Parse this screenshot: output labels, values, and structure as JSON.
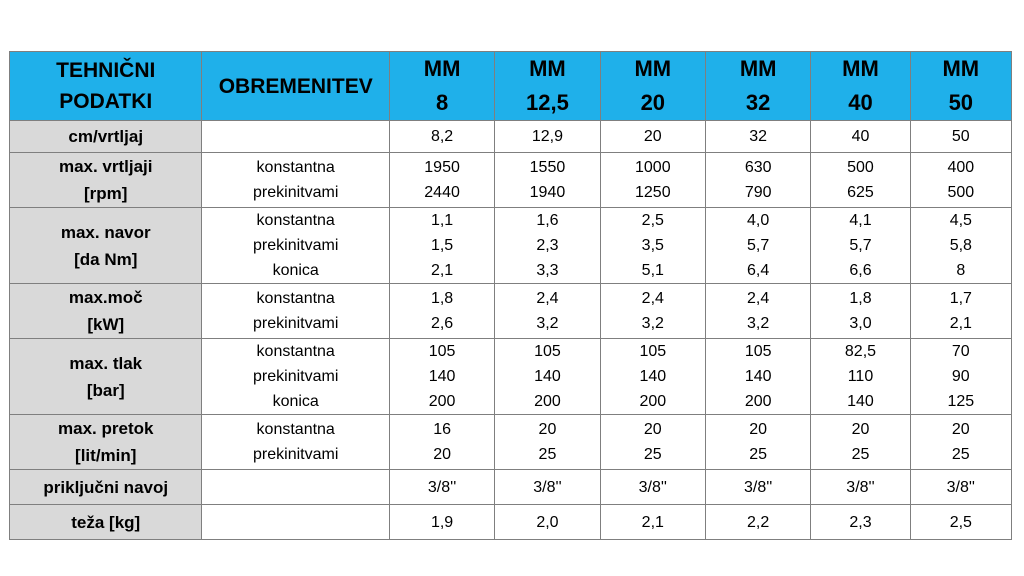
{
  "header": {
    "col0": [
      "TEHNIČNI",
      "PODATKI"
    ],
    "col1": "OBREMENITEV",
    "models": [
      [
        "MM",
        "8"
      ],
      [
        "MM",
        "12,5"
      ],
      [
        "MM",
        "20"
      ],
      [
        "MM",
        "32"
      ],
      [
        "MM",
        "40"
      ],
      [
        "MM",
        "50"
      ]
    ]
  },
  "rows": [
    {
      "label": [
        "cm/vrtljaj"
      ],
      "load": [],
      "values": [
        [
          "8,2"
        ],
        [
          "12,9"
        ],
        [
          "20"
        ],
        [
          "32"
        ],
        [
          "40"
        ],
        [
          "50"
        ]
      ]
    },
    {
      "label": [
        "max. vrtljaji",
        "[rpm]"
      ],
      "load": [
        "konstantna",
        "prekinitvami"
      ],
      "values": [
        [
          "1950",
          "2440"
        ],
        [
          "1550",
          "1940"
        ],
        [
          "1000",
          "1250"
        ],
        [
          "630",
          "790"
        ],
        [
          "500",
          "625"
        ],
        [
          "400",
          "500"
        ]
      ]
    },
    {
      "label": [
        "max. navor",
        "[da Nm]"
      ],
      "load": [
        "konstantna",
        "prekinitvami",
        "konica"
      ],
      "values": [
        [
          "1,1",
          "1,5",
          "2,1"
        ],
        [
          "1,6",
          "2,3",
          "3,3"
        ],
        [
          "2,5",
          "3,5",
          "5,1"
        ],
        [
          "4,0",
          "5,7",
          "6,4"
        ],
        [
          "4,1",
          "5,7",
          "6,6"
        ],
        [
          "4,5",
          "5,8",
          "8"
        ]
      ]
    },
    {
      "label": [
        "max.moč",
        "[kW]"
      ],
      "load": [
        "konstantna",
        "prekinitvami"
      ],
      "values": [
        [
          "1,8",
          "2,6"
        ],
        [
          "2,4",
          "3,2"
        ],
        [
          "2,4",
          "3,2"
        ],
        [
          "2,4",
          "3,2"
        ],
        [
          "1,8",
          "3,0"
        ],
        [
          "1,7",
          "2,1"
        ]
      ]
    },
    {
      "label": [
        "max. tlak",
        "[bar]"
      ],
      "load": [
        "konstantna",
        "prekinitvami",
        "konica"
      ],
      "values": [
        [
          "105",
          "140",
          "200"
        ],
        [
          "105",
          "140",
          "200"
        ],
        [
          "105",
          "140",
          "200"
        ],
        [
          "105",
          "140",
          "200"
        ],
        [
          "82,5",
          "110",
          "140"
        ],
        [
          "70",
          "90",
          "125"
        ]
      ]
    },
    {
      "label": [
        "max. pretok",
        "[lit/min]"
      ],
      "load": [
        "konstantna",
        "prekinitvami"
      ],
      "values": [
        [
          "16",
          "20"
        ],
        [
          "20",
          "25"
        ],
        [
          "20",
          "25"
        ],
        [
          "20",
          "25"
        ],
        [
          "20",
          "25"
        ],
        [
          "20",
          "25"
        ]
      ]
    },
    {
      "label": [
        "priključni navoj"
      ],
      "load": [],
      "values": [
        [
          "3/8''"
        ],
        [
          "3/8''"
        ],
        [
          "3/8''"
        ],
        [
          "3/8''"
        ],
        [
          "3/8''"
        ],
        [
          "3/8''"
        ]
      ]
    },
    {
      "label": [
        "teža [kg]"
      ],
      "load": [],
      "values": [
        [
          "1,9"
        ],
        [
          "2,0"
        ],
        [
          "2,1"
        ],
        [
          "2,2"
        ],
        [
          "2,3"
        ],
        [
          "2,5"
        ]
      ]
    }
  ],
  "colors": {
    "header_bg": "#1fb0ea",
    "label_bg": "#d9d9d9",
    "border": "#7f7f7f"
  }
}
